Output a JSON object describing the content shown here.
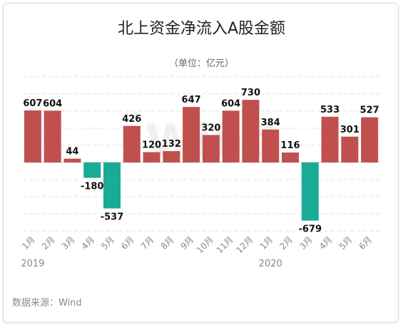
{
  "title": "北上资金净流入A股金额",
  "subtitle": "（单位：亿元）",
  "source": "数据来源：Wind",
  "watermark": "Wind",
  "colors": {
    "positive": "#c0504d",
    "negative": "#1aab96",
    "grid": "#e2e2e2"
  },
  "chart_data": {
    "type": "bar",
    "title": "北上资金净流入A股金额",
    "subtitle": "（单位：亿元）",
    "categories": [
      "1月",
      "2月",
      "3月",
      "4月",
      "5月",
      "6月",
      "7月",
      "8月",
      "9月",
      "10月",
      "11月",
      "12月",
      "1月",
      "2月",
      "3月",
      "4月",
      "5月",
      "6月"
    ],
    "year_labels": [
      {
        "label": "2019",
        "index": 0
      },
      {
        "label": "2020",
        "index": 12
      }
    ],
    "values": [
      607,
      604,
      44,
      -180,
      -537,
      426,
      120,
      132,
      647,
      320,
      604,
      730,
      384,
      116,
      -679,
      533,
      301,
      527
    ],
    "data_labels": [
      "607",
      "604",
      "44",
      "-180",
      "-537",
      "426",
      "120",
      "132",
      "647",
      "320",
      "604",
      "730",
      "384",
      "116",
      "-679",
      "533",
      "301",
      "527"
    ],
    "ylim": [
      -800,
      1000
    ],
    "grid": true,
    "legend": "none"
  }
}
